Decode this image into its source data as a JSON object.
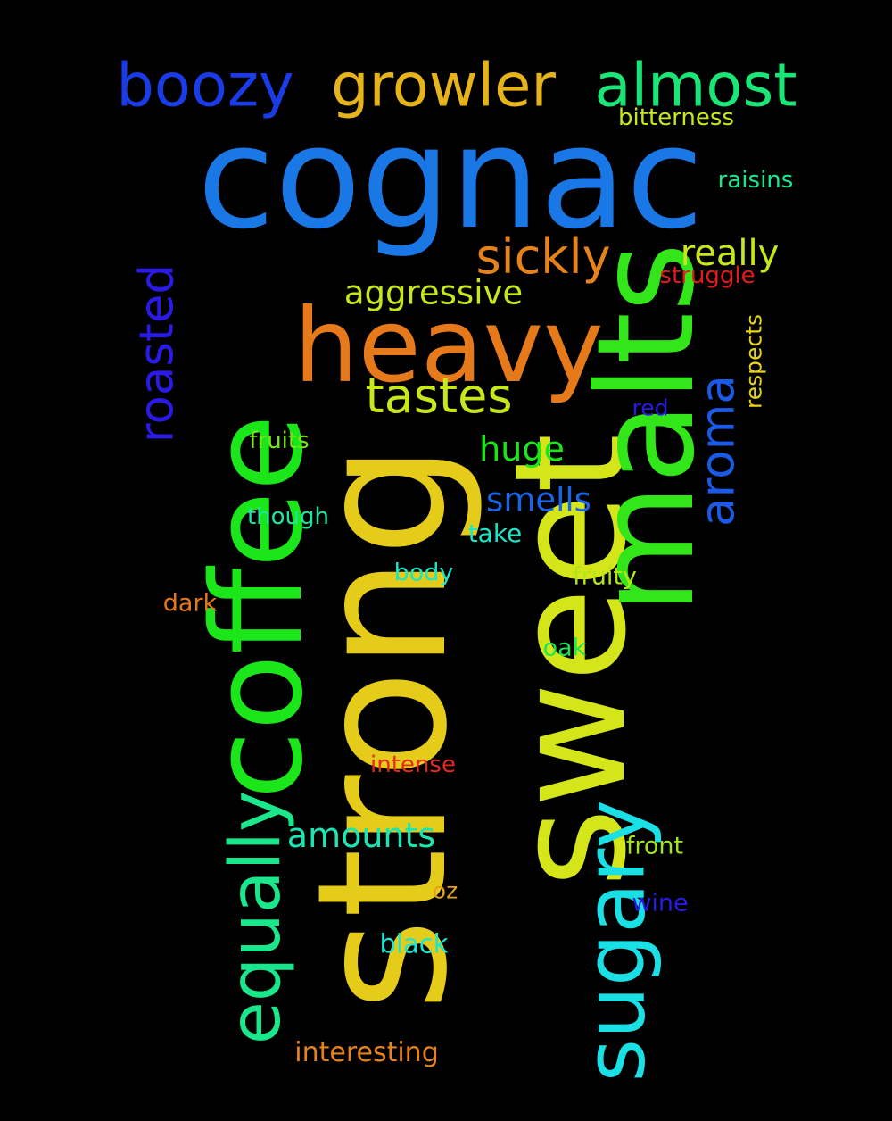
{
  "background": "#000000",
  "words": [
    {
      "text": "cognac",
      "color": "#1a78e6"
    },
    {
      "text": "sweet",
      "color": "#d4e61a"
    },
    {
      "text": "strong",
      "color": "#e6cc1a"
    },
    {
      "text": "malts",
      "color": "#33e61a"
    },
    {
      "text": "coffee",
      "color": "#1ae61a"
    },
    {
      "text": "heavy",
      "color": "#e67a1a"
    },
    {
      "text": "sugary",
      "color": "#1ae0e6"
    },
    {
      "text": "equally",
      "color": "#1ae68c"
    },
    {
      "text": "growler",
      "color": "#e6b41a"
    },
    {
      "text": "almost",
      "color": "#1ae678"
    },
    {
      "text": "boozy",
      "color": "#1a3ce6"
    },
    {
      "text": "roasted",
      "color": "#2a1ae6"
    },
    {
      "text": "aroma",
      "color": "#1a5ae6"
    },
    {
      "text": "sickly",
      "color": "#e6821a"
    },
    {
      "text": "tastes",
      "color": "#c8e61a"
    },
    {
      "text": "really",
      "color": "#c8e61a"
    },
    {
      "text": "aggressive",
      "color": "#c8e61a"
    },
    {
      "text": "amounts",
      "color": "#1ae6b4"
    },
    {
      "text": "smells",
      "color": "#1a64e6"
    },
    {
      "text": "huge",
      "color": "#1ae61a"
    },
    {
      "text": "bitterness",
      "color": "#c8e61a"
    },
    {
      "text": "raisins",
      "color": "#1ae68c"
    },
    {
      "text": "struggle",
      "color": "#e61a1a"
    },
    {
      "text": "respects",
      "color": "#e6d21a"
    },
    {
      "text": "red",
      "color": "#2a1ae6"
    },
    {
      "text": "fruits",
      "color": "#78e61a"
    },
    {
      "text": "though",
      "color": "#1ae6a0"
    },
    {
      "text": "take",
      "color": "#1ae6c8"
    },
    {
      "text": "body",
      "color": "#1ae6c8"
    },
    {
      "text": "fruity",
      "color": "#b4e61a"
    },
    {
      "text": "dark",
      "color": "#e6781a"
    },
    {
      "text": "oak",
      "color": "#1ae650"
    },
    {
      "text": "intense",
      "color": "#e62a1a"
    },
    {
      "text": "front",
      "color": "#a0e61a"
    },
    {
      "text": "oz",
      "color": "#e6a01a"
    },
    {
      "text": "wine",
      "color": "#2a1ae6"
    },
    {
      "text": "black",
      "color": "#1ae6d2"
    },
    {
      "text": "interesting",
      "color": "#e6821a"
    }
  ]
}
